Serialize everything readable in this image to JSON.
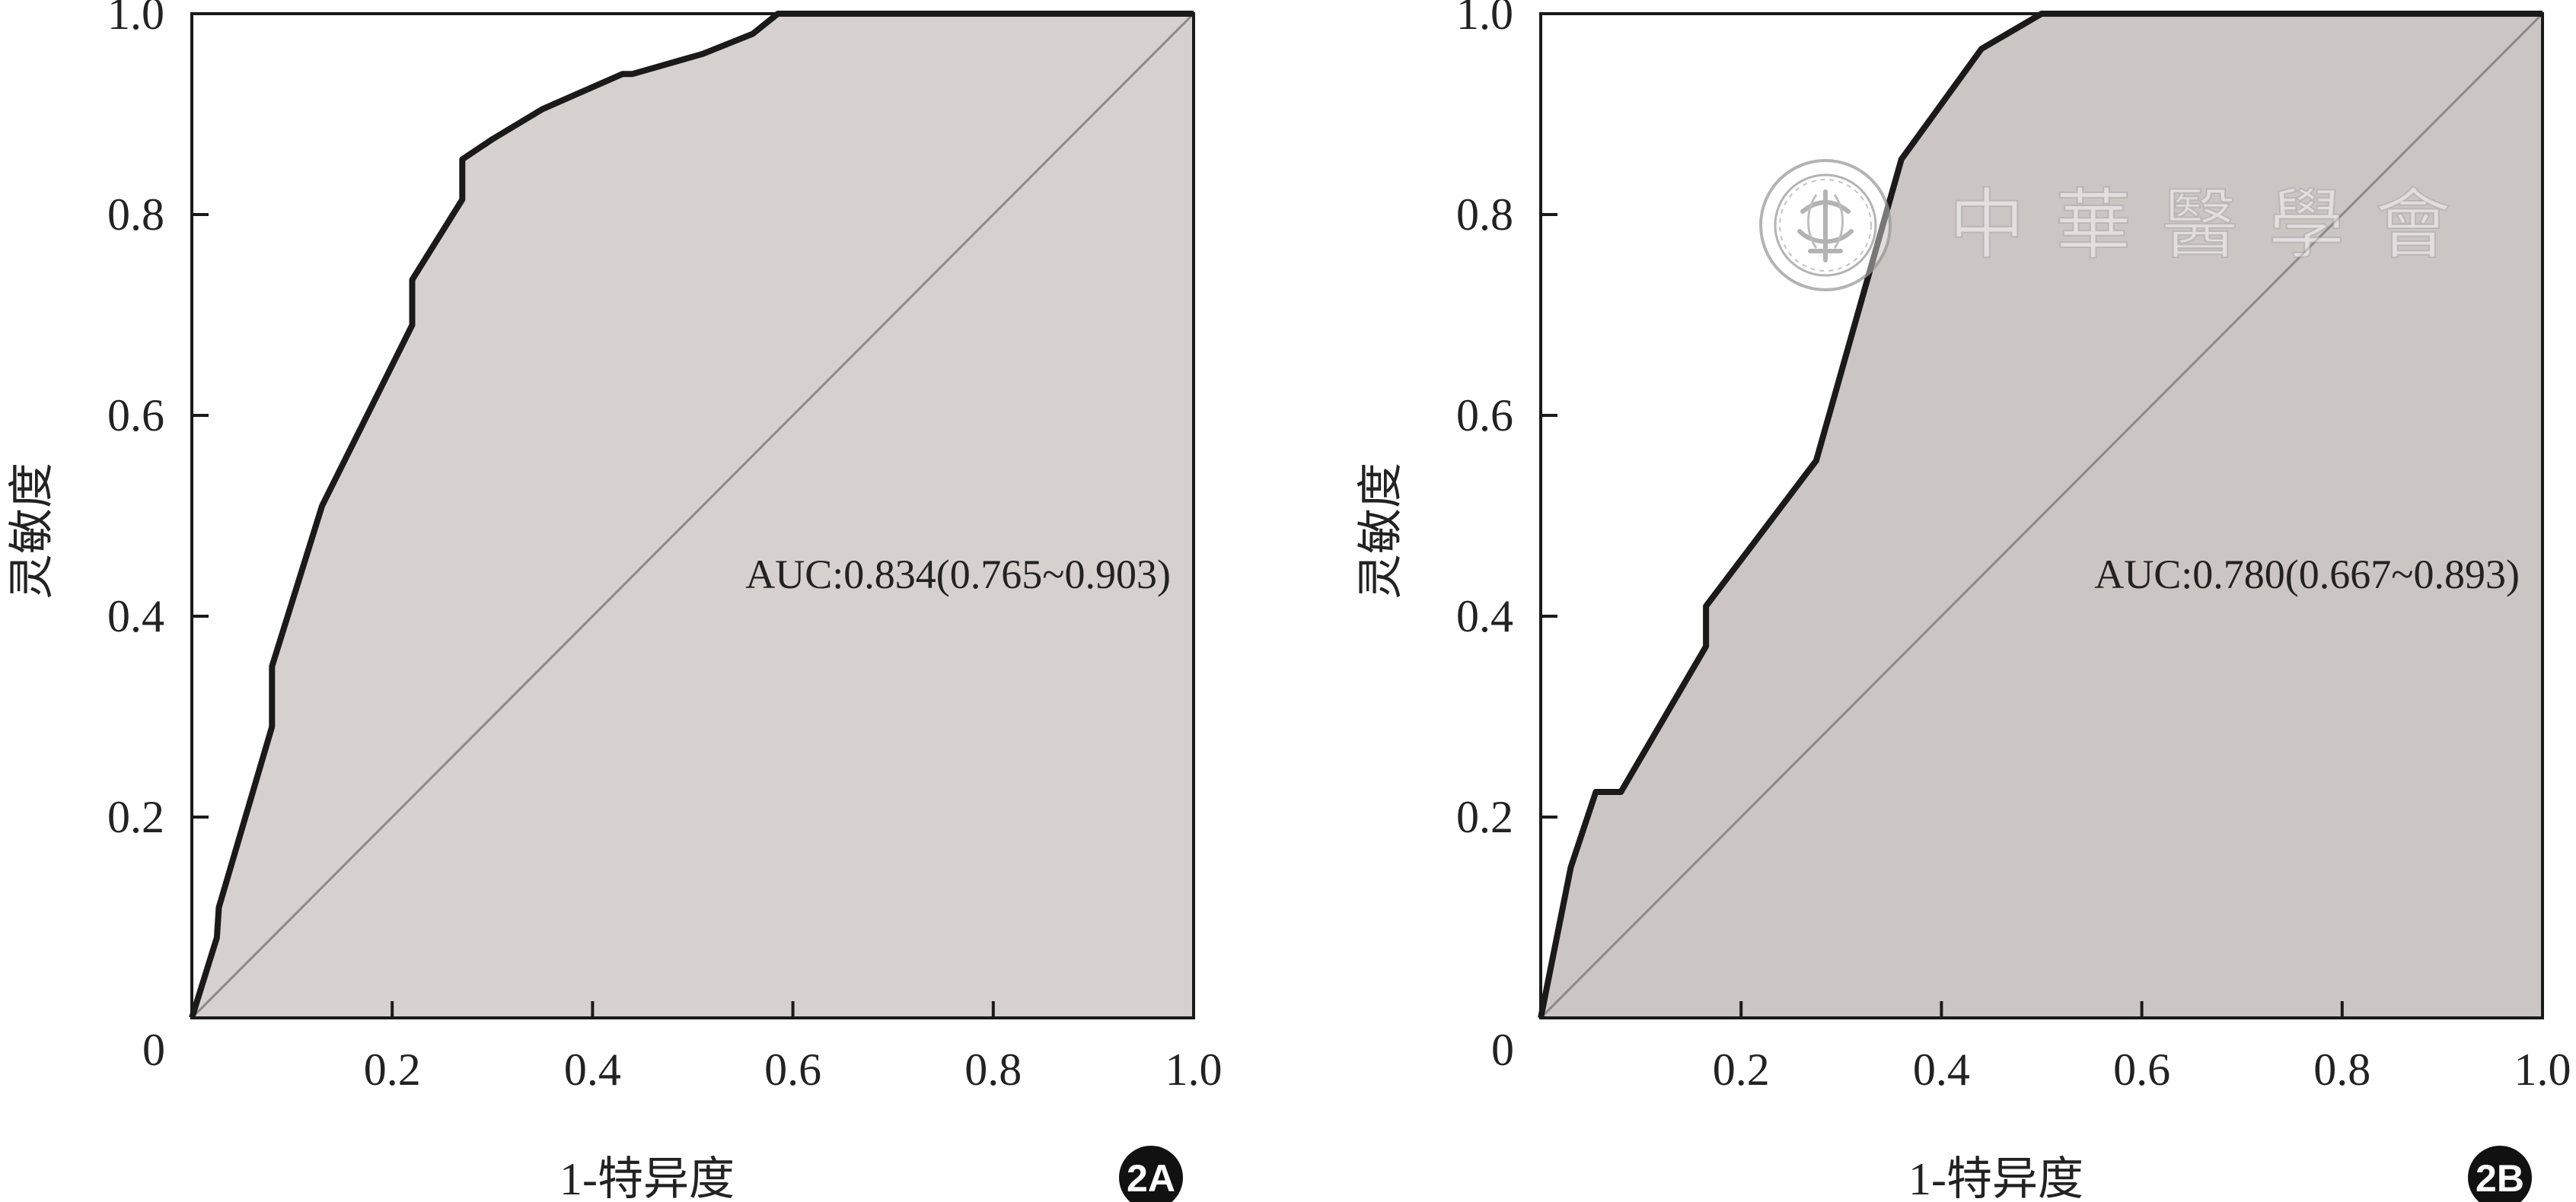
{
  "chart_data": [
    {
      "type": "area",
      "panel_label": "2A",
      "xlabel": "1-特异度",
      "ylabel": "灵敏度",
      "xlim": [
        0,
        1
      ],
      "ylim": [
        0,
        1
      ],
      "x_ticks": [
        "0.2",
        "0.4",
        "0.6",
        "0.8",
        "1.0"
      ],
      "y_ticks": [
        "0.2",
        "0.4",
        "0.6",
        "0.8",
        "1.0"
      ],
      "origin_label": "0",
      "annotation": "AUC:0.834(0.765~0.903)",
      "fill_color": "#d6d0ce",
      "curve_color": "#1a1a1a",
      "diagonal_color": "#8a8a8a",
      "roc_curve": [
        [
          0,
          0
        ],
        [
          0.025,
          0.08
        ],
        [
          0.027,
          0.11
        ],
        [
          0.08,
          0.29
        ],
        [
          0.08,
          0.35
        ],
        [
          0.13,
          0.51
        ],
        [
          0.22,
          0.69
        ],
        [
          0.22,
          0.735
        ],
        [
          0.27,
          0.815
        ],
        [
          0.27,
          0.855
        ],
        [
          0.3,
          0.875
        ],
        [
          0.35,
          0.905
        ],
        [
          0.43,
          0.94
        ],
        [
          0.44,
          0.94
        ],
        [
          0.51,
          0.96
        ],
        [
          0.56,
          0.98
        ],
        [
          0.585,
          1.0
        ],
        [
          1.0,
          1.0
        ]
      ]
    },
    {
      "type": "area",
      "panel_label": "2B",
      "xlabel": "1-特异度",
      "ylabel": "灵敏度",
      "xlim": [
        0,
        1
      ],
      "ylim": [
        0,
        1
      ],
      "x_ticks": [
        "0.2",
        "0.4",
        "0.6",
        "0.8",
        "1.0"
      ],
      "y_ticks": [
        "0.2",
        "0.4",
        "0.6",
        "0.8",
        "1.0"
      ],
      "origin_label": "0",
      "annotation": "AUC:0.780(0.667~0.893)",
      "fill_color": "#cbc5c3",
      "curve_color": "#1a1a1a",
      "diagonal_color": "#8a8a8a",
      "roc_curve": [
        [
          0,
          0
        ],
        [
          0.03,
          0.15
        ],
        [
          0.055,
          0.225
        ],
        [
          0.08,
          0.225
        ],
        [
          0.165,
          0.37
        ],
        [
          0.165,
          0.41
        ],
        [
          0.275,
          0.555
        ],
        [
          0.36,
          0.855
        ],
        [
          0.44,
          0.965
        ],
        [
          0.5,
          1.0
        ],
        [
          1.0,
          1.0
        ]
      ]
    }
  ],
  "watermark": {
    "text": "中華醫學會",
    "logo": "chinese-medical-association-seal"
  }
}
